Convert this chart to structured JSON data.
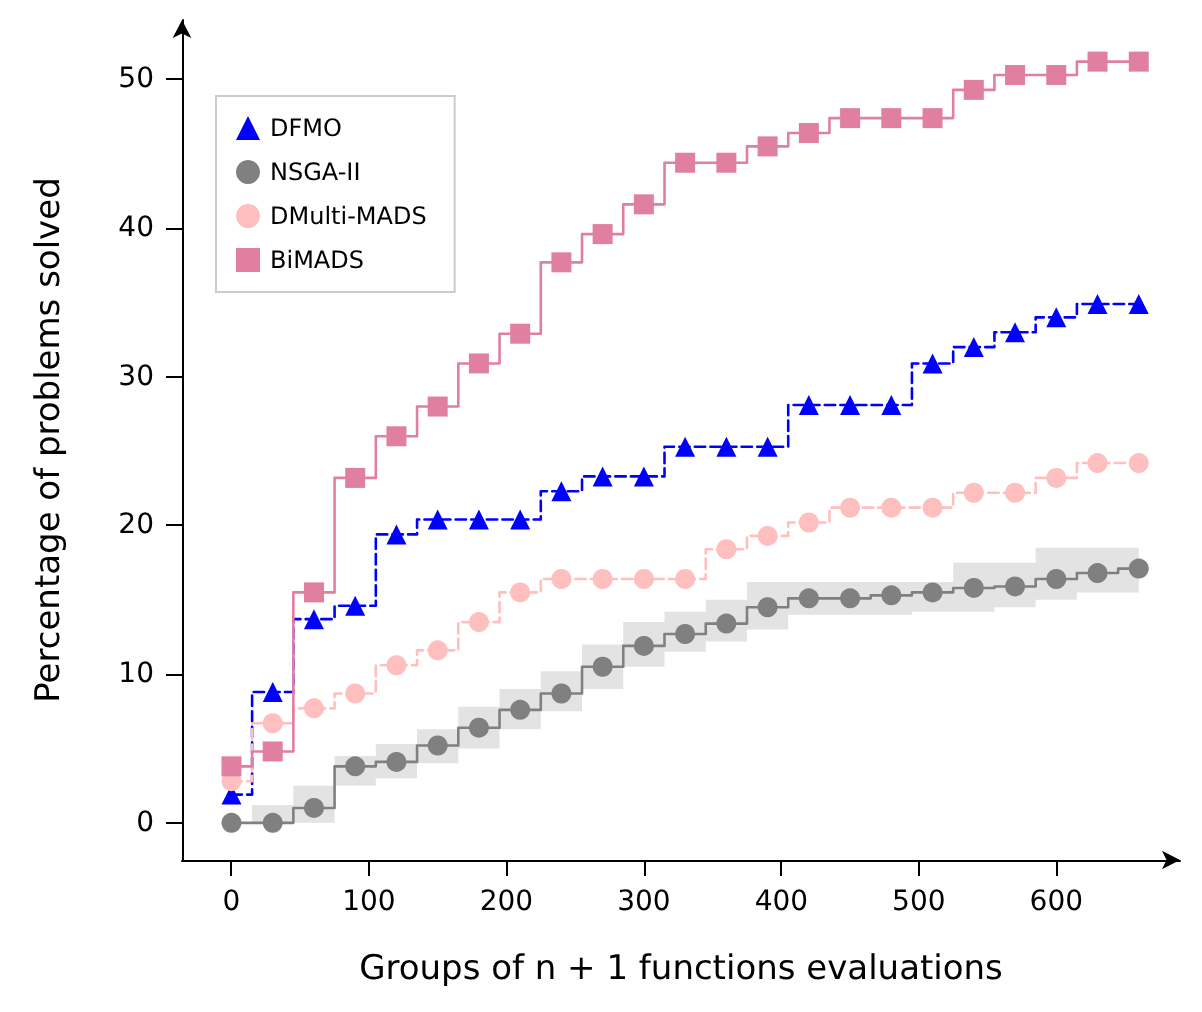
{
  "chart_data": {
    "type": "step",
    "xlabel": "Groups of n + 1 functions evaluations",
    "ylabel": "Percentage of problems solved",
    "x": [
      0,
      30,
      60,
      90,
      120,
      150,
      180,
      210,
      240,
      270,
      300,
      330,
      360,
      390,
      420,
      450,
      480,
      510,
      540,
      570,
      600,
      630,
      660
    ],
    "xlim": [
      -36,
      690
    ],
    "ylim": [
      -2.5,
      54
    ],
    "xticks": [
      0,
      100,
      200,
      300,
      400,
      500,
      600
    ],
    "yticks": [
      0,
      10,
      20,
      30,
      40,
      50
    ],
    "grid": false,
    "legend": "top left",
    "series": [
      {
        "name": "DFMO",
        "color": "#0000ff",
        "marker": "triangle",
        "line_style": "dashed",
        "values": [
          1.9,
          8.8,
          13.7,
          14.6,
          19.4,
          20.4,
          20.4,
          20.4,
          22.3,
          23.3,
          23.3,
          25.3,
          25.3,
          25.3,
          28.1,
          28.1,
          28.1,
          30.9,
          32.0,
          33.0,
          34.0,
          34.9,
          34.9
        ]
      },
      {
        "name": "NSGA-II",
        "color": "#808080",
        "marker": "circle",
        "line_style": "solid",
        "values": [
          0,
          0,
          1.0,
          3.8,
          4.1,
          5.2,
          6.4,
          7.6,
          8.7,
          10.5,
          11.9,
          12.7,
          13.4,
          14.5,
          15.1,
          15.1,
          15.3,
          15.5,
          15.8,
          15.9,
          16.4,
          16.8,
          17.1
        ],
        "lower": [
          0,
          0,
          0,
          2.5,
          3.0,
          4.0,
          5.0,
          6.3,
          7.5,
          9.0,
          10.5,
          11.5,
          12.2,
          13.0,
          14.0,
          14.0,
          14.0,
          14.2,
          14.2,
          14.5,
          15.0,
          15.5,
          15.5
        ],
        "upper": [
          0,
          1.2,
          2.5,
          4.5,
          5.3,
          6.3,
          7.8,
          9.0,
          10.2,
          12.0,
          13.5,
          14.2,
          15.0,
          16.2,
          16.2,
          16.2,
          16.2,
          16.2,
          17.5,
          17.5,
          18.5,
          18.5,
          18.5
        ]
      },
      {
        "name": "DMulti-MADS",
        "color": "#ffbfbf",
        "marker": "circle",
        "line_style": "dashed",
        "values": [
          2.8,
          6.7,
          7.7,
          8.7,
          10.6,
          11.6,
          13.5,
          15.5,
          16.4,
          16.4,
          16.4,
          16.4,
          18.4,
          19.3,
          20.2,
          21.2,
          21.2,
          21.2,
          22.2,
          22.2,
          23.2,
          24.2,
          24.2
        ]
      },
      {
        "name": "BiMADS",
        "color": "#e07f9f",
        "marker": "square",
        "line_style": "solid",
        "values": [
          3.8,
          4.8,
          15.5,
          23.2,
          26.0,
          28.0,
          30.9,
          32.9,
          37.7,
          39.6,
          41.6,
          44.4,
          44.4,
          45.5,
          46.4,
          47.4,
          47.4,
          47.4,
          49.3,
          50.3,
          50.3,
          51.2,
          51.2
        ]
      }
    ]
  }
}
